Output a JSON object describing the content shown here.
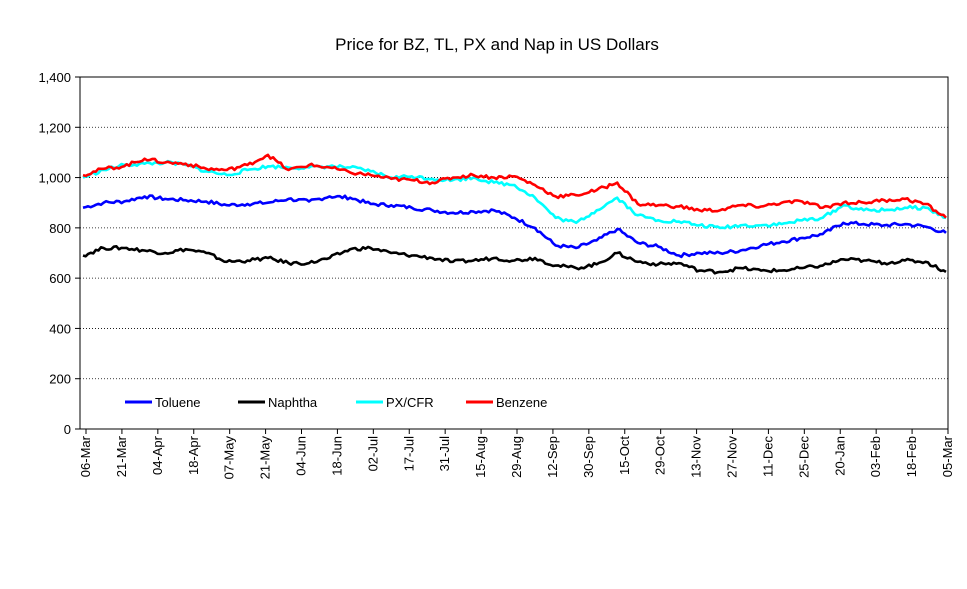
{
  "chart_data": {
    "type": "line",
    "title": "Price for BZ, TL, PX and Nap in US Dollars",
    "xlabel": "",
    "ylabel": "",
    "ylim": [
      0,
      1400
    ],
    "yticks": [
      "0",
      "200",
      "400",
      "600",
      "800",
      "1,000",
      "1,200",
      "1,400"
    ],
    "x_tick_labels": [
      "06-Mar",
      "21-Mar",
      "04-Apr",
      "18-Apr",
      "07-May",
      "21-May",
      "04-Jun",
      "18-Jun",
      "02-Jul",
      "17-Jul",
      "31-Jul",
      "15-Aug",
      "29-Aug",
      "12-Sep",
      "30-Sep",
      "15-Oct",
      "29-Oct",
      "13-Nov",
      "27-Nov",
      "11-Dec",
      "25-Dec",
      "20-Jan",
      "03-Feb",
      "18-Feb",
      "05-Mar"
    ],
    "grid": "horizontal dotted",
    "legend": "bottom-left inside",
    "series": [
      {
        "name": "Toluene",
        "color": "#0000ff",
        "values": [
          880,
          900,
          905,
          925,
          915,
          910,
          905,
          890,
          895,
          900,
          915,
          905,
          925,
          920,
          895,
          890,
          880,
          870,
          860,
          865,
          870,
          840,
          800,
          730,
          720,
          750,
          795,
          740,
          725,
          690,
          700,
          700,
          710,
          730,
          745,
          760,
          775,
          820,
          815,
          810,
          815,
          805,
          780
        ]
      },
      {
        "name": "Naphtha",
        "color": "#000000",
        "values": [
          690,
          720,
          720,
          710,
          700,
          715,
          700,
          665,
          670,
          680,
          660,
          660,
          680,
          715,
          720,
          700,
          690,
          680,
          665,
          670,
          680,
          670,
          680,
          650,
          640,
          655,
          700,
          665,
          655,
          660,
          630,
          625,
          640,
          630,
          630,
          640,
          650,
          675,
          670,
          660,
          670,
          665,
          625
        ]
      },
      {
        "name": "PX/CFR",
        "color": "#00ffff",
        "values": [
          1000,
          1030,
          1050,
          1055,
          1060,
          1050,
          1025,
          1010,
          1030,
          1045,
          1040,
          1040,
          1045,
          1040,
          1025,
          1000,
          1005,
          995,
          990,
          1000,
          980,
          970,
          920,
          840,
          820,
          870,
          920,
          850,
          830,
          825,
          810,
          800,
          810,
          810,
          815,
          830,
          840,
          890,
          870,
          870,
          880,
          880,
          840
        ]
      },
      {
        "name": "Benzene",
        "color": "#ff0000",
        "values": [
          1010,
          1035,
          1045,
          1075,
          1060,
          1055,
          1035,
          1030,
          1050,
          1090,
          1030,
          1050,
          1040,
          1020,
          1010,
          995,
          990,
          980,
          1000,
          1010,
          1000,
          1005,
          970,
          925,
          930,
          950,
          980,
          895,
          890,
          885,
          870,
          870,
          890,
          885,
          900,
          905,
          880,
          900,
          900,
          910,
          915,
          895,
          840
        ]
      }
    ]
  }
}
